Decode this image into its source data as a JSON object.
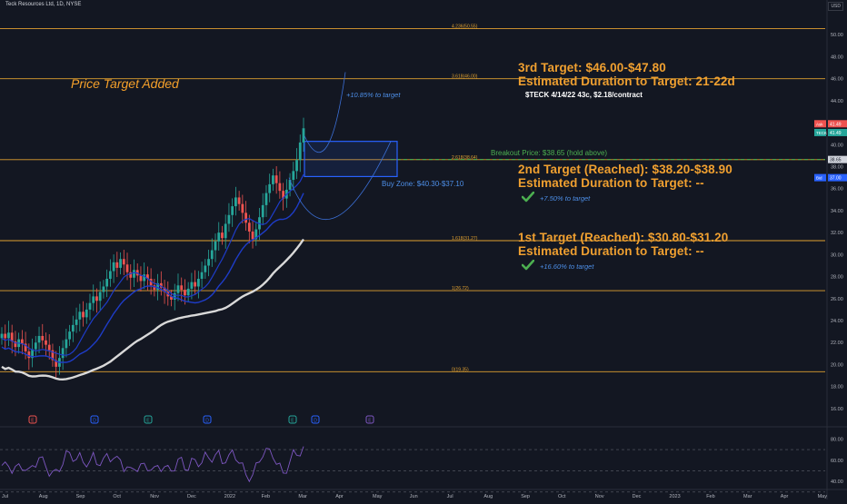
{
  "header": {
    "title": "Teck Resources Ltd, 1D, NYSE",
    "currency": "USD"
  },
  "annotations": {
    "price_target_added": "Price Target Added",
    "target3_title": "3rd Target: $46.00-$47.80",
    "target3_duration": "Estimated Duration to Target: 21-22d",
    "option_note": "$TECK 4/14/22 43c, $2.18/contract",
    "target2_title": "2nd Target (Reached): $38.20-$38.90",
    "target2_duration": "Estimated Duration to Target: --",
    "target2_pct": "+7.50% to target",
    "target1_title": "1st Target (Reached): $30.80-$31.20",
    "target1_duration": "Estimated Duration to Target: --",
    "target1_pct": "+16.60% to target",
    "target3_pct": "+10.85% to target",
    "breakout": "Breakout Price: $38.65 (hold above)",
    "buy_zone": "Buy Zone: $40.30-$37.10"
  },
  "colors": {
    "background": "#131722",
    "fib_line": "#e0a030",
    "target_text": "#f0a030",
    "blue_note": "#4d8fe8",
    "green_note": "#4caf50",
    "up_candle": "#26a69a",
    "down_candle": "#ef5350",
    "ma_blue": "#1e3cc8",
    "ma_white": "#d9d9d9",
    "buy_zone_border": "#2962ff"
  },
  "chart_data": {
    "type": "candlestick",
    "title": "Teck Resources Ltd, 1D, NYSE",
    "y_axis": {
      "range": [
        15,
        52
      ],
      "ticks": [
        16.0,
        18.0,
        20.0,
        22.0,
        24.0,
        26.0,
        28.0,
        30.0,
        32.0,
        34.0,
        36.0,
        38.0,
        40.0,
        42.0,
        44.0,
        46.0,
        48.0,
        50.0
      ],
      "tick_labels": [
        "16.00",
        "18.00",
        "20.00",
        "22.00",
        "24.00",
        "26.00",
        "28.00",
        "30.00",
        "32.00",
        "34.00",
        "36.00",
        "38.00",
        "40.00",
        "42.00",
        "44.00",
        "46.00",
        "48.00",
        "50.00"
      ]
    },
    "x_axis": {
      "tick_labels": [
        "Jul",
        "Aug",
        "Sep",
        "Oct",
        "Nov",
        "Dec",
        "2022",
        "Feb",
        "Mar",
        "Apr",
        "May",
        "Jun",
        "Jul",
        "Aug",
        "Sep",
        "Oct",
        "Nov",
        "Dec",
        "2023",
        "Feb",
        "Mar",
        "Apr",
        "May"
      ]
    },
    "fib_levels": [
      {
        "label": "0(19.35)",
        "value": 19.35
      },
      {
        "label": "1(26.72)",
        "value": 26.72
      },
      {
        "label": "1.618(31.27)",
        "value": 31.27
      },
      {
        "label": "2.618(38.64)",
        "value": 38.64
      },
      {
        "label": "3.618(46.00)",
        "value": 46.0
      },
      {
        "label": "4.236(50.55)",
        "value": 50.55
      }
    ],
    "price_labels": [
      {
        "text": "Ask",
        "value": "41.49",
        "color": "#ef5350"
      },
      {
        "text": "TECK",
        "value": "41.49",
        "color": "#26a69a"
      },
      {
        "text": "",
        "value": "38.65",
        "color": "#d1d4dc"
      },
      {
        "text": "Bid",
        "value": "37.00",
        "color": "#2962ff"
      }
    ],
    "buy_zone": {
      "high": 40.3,
      "low": 37.1
    },
    "breakout_price": 38.65,
    "close_series": [
      22.8,
      22.4,
      22.9,
      22.1,
      21.6,
      22.3,
      21.9,
      21.2,
      20.6,
      21.4,
      22.0,
      22.6,
      22.2,
      21.8,
      21.3,
      20.4,
      19.8,
      20.6,
      21.5,
      22.3,
      23.0,
      23.6,
      24.1,
      24.8,
      24.3,
      25.0,
      25.6,
      26.2,
      25.8,
      26.6,
      27.1,
      27.8,
      28.5,
      29.3,
      28.8,
      29.6,
      29.1,
      28.4,
      27.9,
      28.6,
      28.1,
      27.6,
      28.2,
      27.8,
      27.2,
      26.8,
      27.4,
      27.0,
      26.6,
      26.2,
      25.9,
      26.5,
      27.2,
      26.8,
      26.3,
      26.9,
      27.5,
      27.1,
      27.8,
      28.4,
      29.0,
      29.6,
      30.4,
      31.2,
      32.0,
      31.5,
      32.8,
      33.6,
      34.4,
      35.2,
      34.6,
      33.8,
      32.9,
      32.1,
      31.4,
      32.3,
      33.4,
      34.5,
      35.6,
      36.4,
      37.2,
      36.5,
      35.8,
      35.1,
      35.9,
      36.8,
      37.6,
      38.6,
      40.2,
      41.49
    ],
    "rsi": {
      "ticks": [
        "80.00",
        "60.00",
        "40.00"
      ],
      "range": [
        35,
        88
      ]
    }
  }
}
